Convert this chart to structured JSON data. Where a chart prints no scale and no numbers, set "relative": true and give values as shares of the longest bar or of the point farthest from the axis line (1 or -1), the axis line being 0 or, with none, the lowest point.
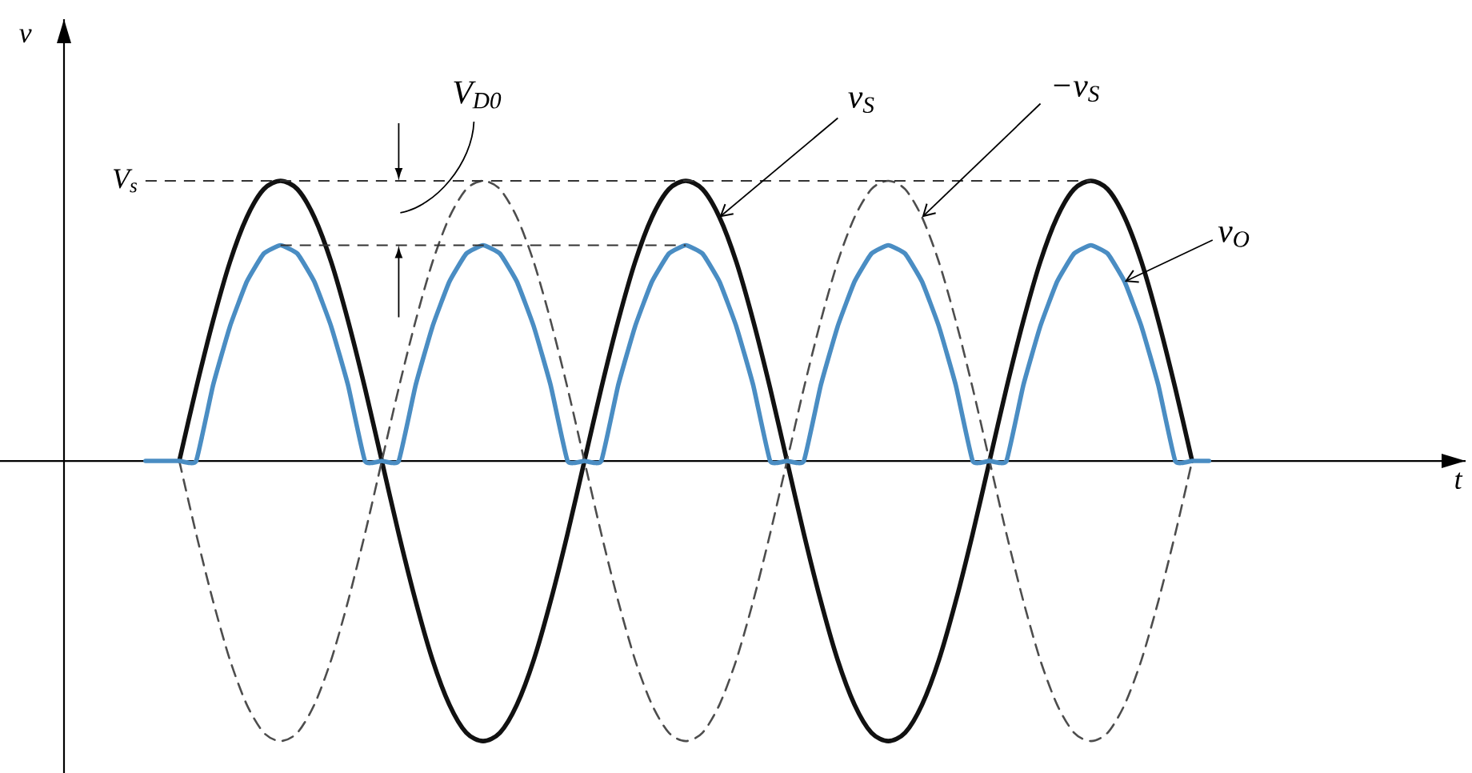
{
  "chart_data": {
    "type": "line",
    "relative": true,
    "categories": [
      null,
      null,
      null,
      null,
      null,
      null,
      null,
      null,
      null,
      null,
      null,
      null,
      null,
      null,
      null,
      null,
      null,
      null,
      null,
      null,
      null,
      null,
      null,
      null,
      null,
      null,
      null,
      null,
      null,
      null,
      null,
      null,
      null,
      null,
      null,
      null,
      null,
      null,
      null,
      null,
      null,
      null,
      null,
      null,
      null,
      null,
      null,
      null,
      null,
      null,
      null,
      null,
      null,
      null,
      null,
      null,
      null,
      null,
      null,
      null,
      null,
      null,
      null,
      null
    ],
    "series": [
      {
        "name": "v$_{S}$",
        "color": "#111111",
        "values": [
          null,
          null,
          0,
          0.26,
          0.5,
          0.71,
          0.87,
          0.97,
          1,
          0.97,
          0.87,
          0.71,
          0.5,
          0.26,
          0,
          -0.26,
          -0.5,
          -0.71,
          -0.87,
          -0.97,
          -1,
          -0.97,
          -0.87,
          -0.71,
          -0.5,
          -0.26,
          0,
          0.26,
          0.5,
          0.71,
          0.87,
          0.97,
          1,
          0.97,
          0.87,
          0.71,
          0.5,
          0.26,
          0,
          -0.26,
          -0.5,
          -0.71,
          -0.87,
          -0.97,
          -1,
          -0.97,
          -0.87,
          -0.71,
          -0.5,
          -0.26,
          0,
          0.26,
          0.5,
          0.71,
          0.87,
          0.97,
          1,
          0.97,
          0.87,
          0.71,
          0.5,
          0.26,
          0,
          null
        ]
      },
      {
        "name": "−v$_{S}$",
        "color": "#4d4d4d",
        "line_style": "dashed",
        "values": [
          null,
          null,
          0,
          -0.26,
          -0.5,
          -0.71,
          -0.87,
          -0.97,
          -1,
          -0.97,
          -0.87,
          -0.71,
          -0.5,
          -0.26,
          0,
          0.26,
          0.5,
          0.71,
          0.87,
          0.97,
          1,
          0.97,
          0.87,
          0.71,
          0.5,
          0.26,
          0,
          -0.26,
          -0.5,
          -0.71,
          -0.87,
          -0.97,
          -1,
          -0.97,
          -0.87,
          -0.71,
          -0.5,
          -0.26,
          0,
          0.26,
          0.5,
          0.71,
          0.87,
          0.97,
          1,
          0.97,
          0.87,
          0.71,
          0.5,
          0.26,
          0,
          -0.26,
          -0.5,
          -0.71,
          -0.87,
          -0.97,
          -1,
          -0.97,
          -0.87,
          -0.71,
          -0.5,
          -0.26,
          0,
          null
        ]
      },
      {
        "name": "v$_{O}$",
        "color": "#4a8dc3",
        "values": [
          0,
          0,
          0,
          0,
          0.27,
          0.48,
          0.64,
          0.74,
          0.77,
          0.74,
          0.64,
          0.48,
          0.27,
          0,
          0,
          0,
          0.27,
          0.48,
          0.64,
          0.74,
          0.77,
          0.74,
          0.64,
          0.48,
          0.27,
          0,
          0,
          0,
          0.27,
          0.48,
          0.64,
          0.74,
          0.77,
          0.74,
          0.64,
          0.48,
          0.27,
          0,
          0,
          0,
          0.27,
          0.48,
          0.64,
          0.74,
          0.77,
          0.74,
          0.64,
          0.48,
          0.27,
          0,
          0,
          0,
          0.27,
          0.48,
          0.64,
          0.74,
          0.77,
          0.74,
          0.64,
          0.48,
          0.27,
          0,
          0,
          0
        ]
      }
    ],
    "ref_lines": [
      {
        "axis": "y",
        "value": 1,
        "label": "V$_{s}$",
        "line_style": "dashed",
        "color": "#333333"
      },
      {
        "axis": "y",
        "value": 0.77,
        "line_style": "dashed",
        "color": "#333333"
      }
    ],
    "annotations": [
      "V$_{D0}$",
      "v",
      "t"
    ]
  }
}
